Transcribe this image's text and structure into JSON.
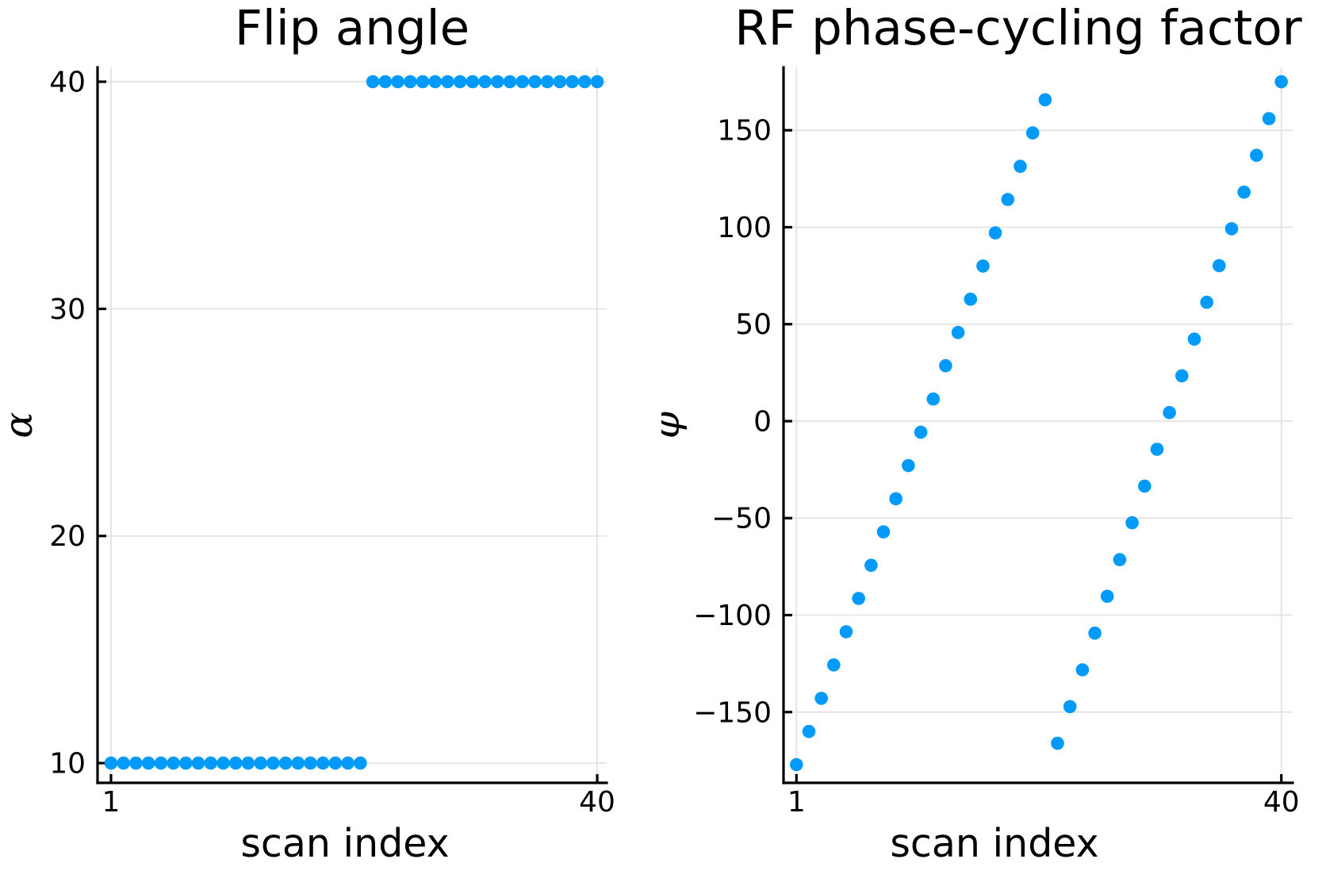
{
  "figure": {
    "background": "#FFFFFF",
    "accent_color": "#009AFA"
  },
  "chart_data": [
    {
      "type": "scatter",
      "title": "Flip angle",
      "xlabel": "scan index",
      "ylabel": "α",
      "x": [
        1,
        2,
        3,
        4,
        5,
        6,
        7,
        8,
        9,
        10,
        11,
        12,
        13,
        14,
        15,
        16,
        17,
        18,
        19,
        20,
        21,
        22,
        23,
        24,
        25,
        26,
        27,
        28,
        29,
        30,
        31,
        32,
        33,
        34,
        35,
        36,
        37,
        38,
        39,
        40
      ],
      "y": [
        10,
        10,
        10,
        10,
        10,
        10,
        10,
        10,
        10,
        10,
        10,
        10,
        10,
        10,
        10,
        10,
        10,
        10,
        10,
        10,
        10,
        40,
        40,
        40,
        40,
        40,
        40,
        40,
        40,
        40,
        40,
        40,
        40,
        40,
        40,
        40,
        40,
        40,
        40,
        40
      ],
      "xticks": [
        1,
        40
      ],
      "yticks": [
        10,
        20,
        30,
        40
      ],
      "xlim": [
        -0.08,
        40.76
      ],
      "ylim": [
        9.13,
        40.63
      ],
      "grid": true,
      "legend": "none",
      "marker_color": "#009AFA"
    },
    {
      "type": "scatter",
      "title": "RF phase-cycling factor",
      "xlabel": "scan index",
      "ylabel": "φ",
      "x": [
        1,
        2,
        3,
        4,
        5,
        6,
        7,
        8,
        9,
        10,
        11,
        12,
        13,
        14,
        15,
        16,
        17,
        18,
        19,
        20,
        21,
        22,
        23,
        24,
        25,
        26,
        27,
        28,
        29,
        30,
        31,
        32,
        33,
        34,
        35,
        36,
        37,
        38,
        39,
        40
      ],
      "y": [
        -177.1,
        -160.0,
        -142.9,
        -125.7,
        -108.6,
        -91.4,
        -74.3,
        -57.1,
        -40.0,
        -22.9,
        -5.7,
        11.4,
        28.6,
        45.7,
        62.9,
        80.0,
        97.1,
        114.3,
        131.4,
        148.6,
        165.7,
        -166.1,
        -147.2,
        -128.2,
        -109.3,
        -90.3,
        -71.4,
        -52.4,
        -33.5,
        -14.5,
        4.4,
        23.4,
        42.3,
        61.3,
        80.2,
        99.2,
        118.1,
        137.1,
        156.0,
        175.0
      ],
      "xticks": [
        1,
        40
      ],
      "yticks": [
        -150,
        -100,
        -50,
        0,
        50,
        100,
        150
      ],
      "xlim": [
        -0.04,
        40.91
      ],
      "ylim": [
        -186.5,
        182.4
      ],
      "grid": true,
      "legend": "none",
      "marker_color": "#009AFA"
    }
  ]
}
